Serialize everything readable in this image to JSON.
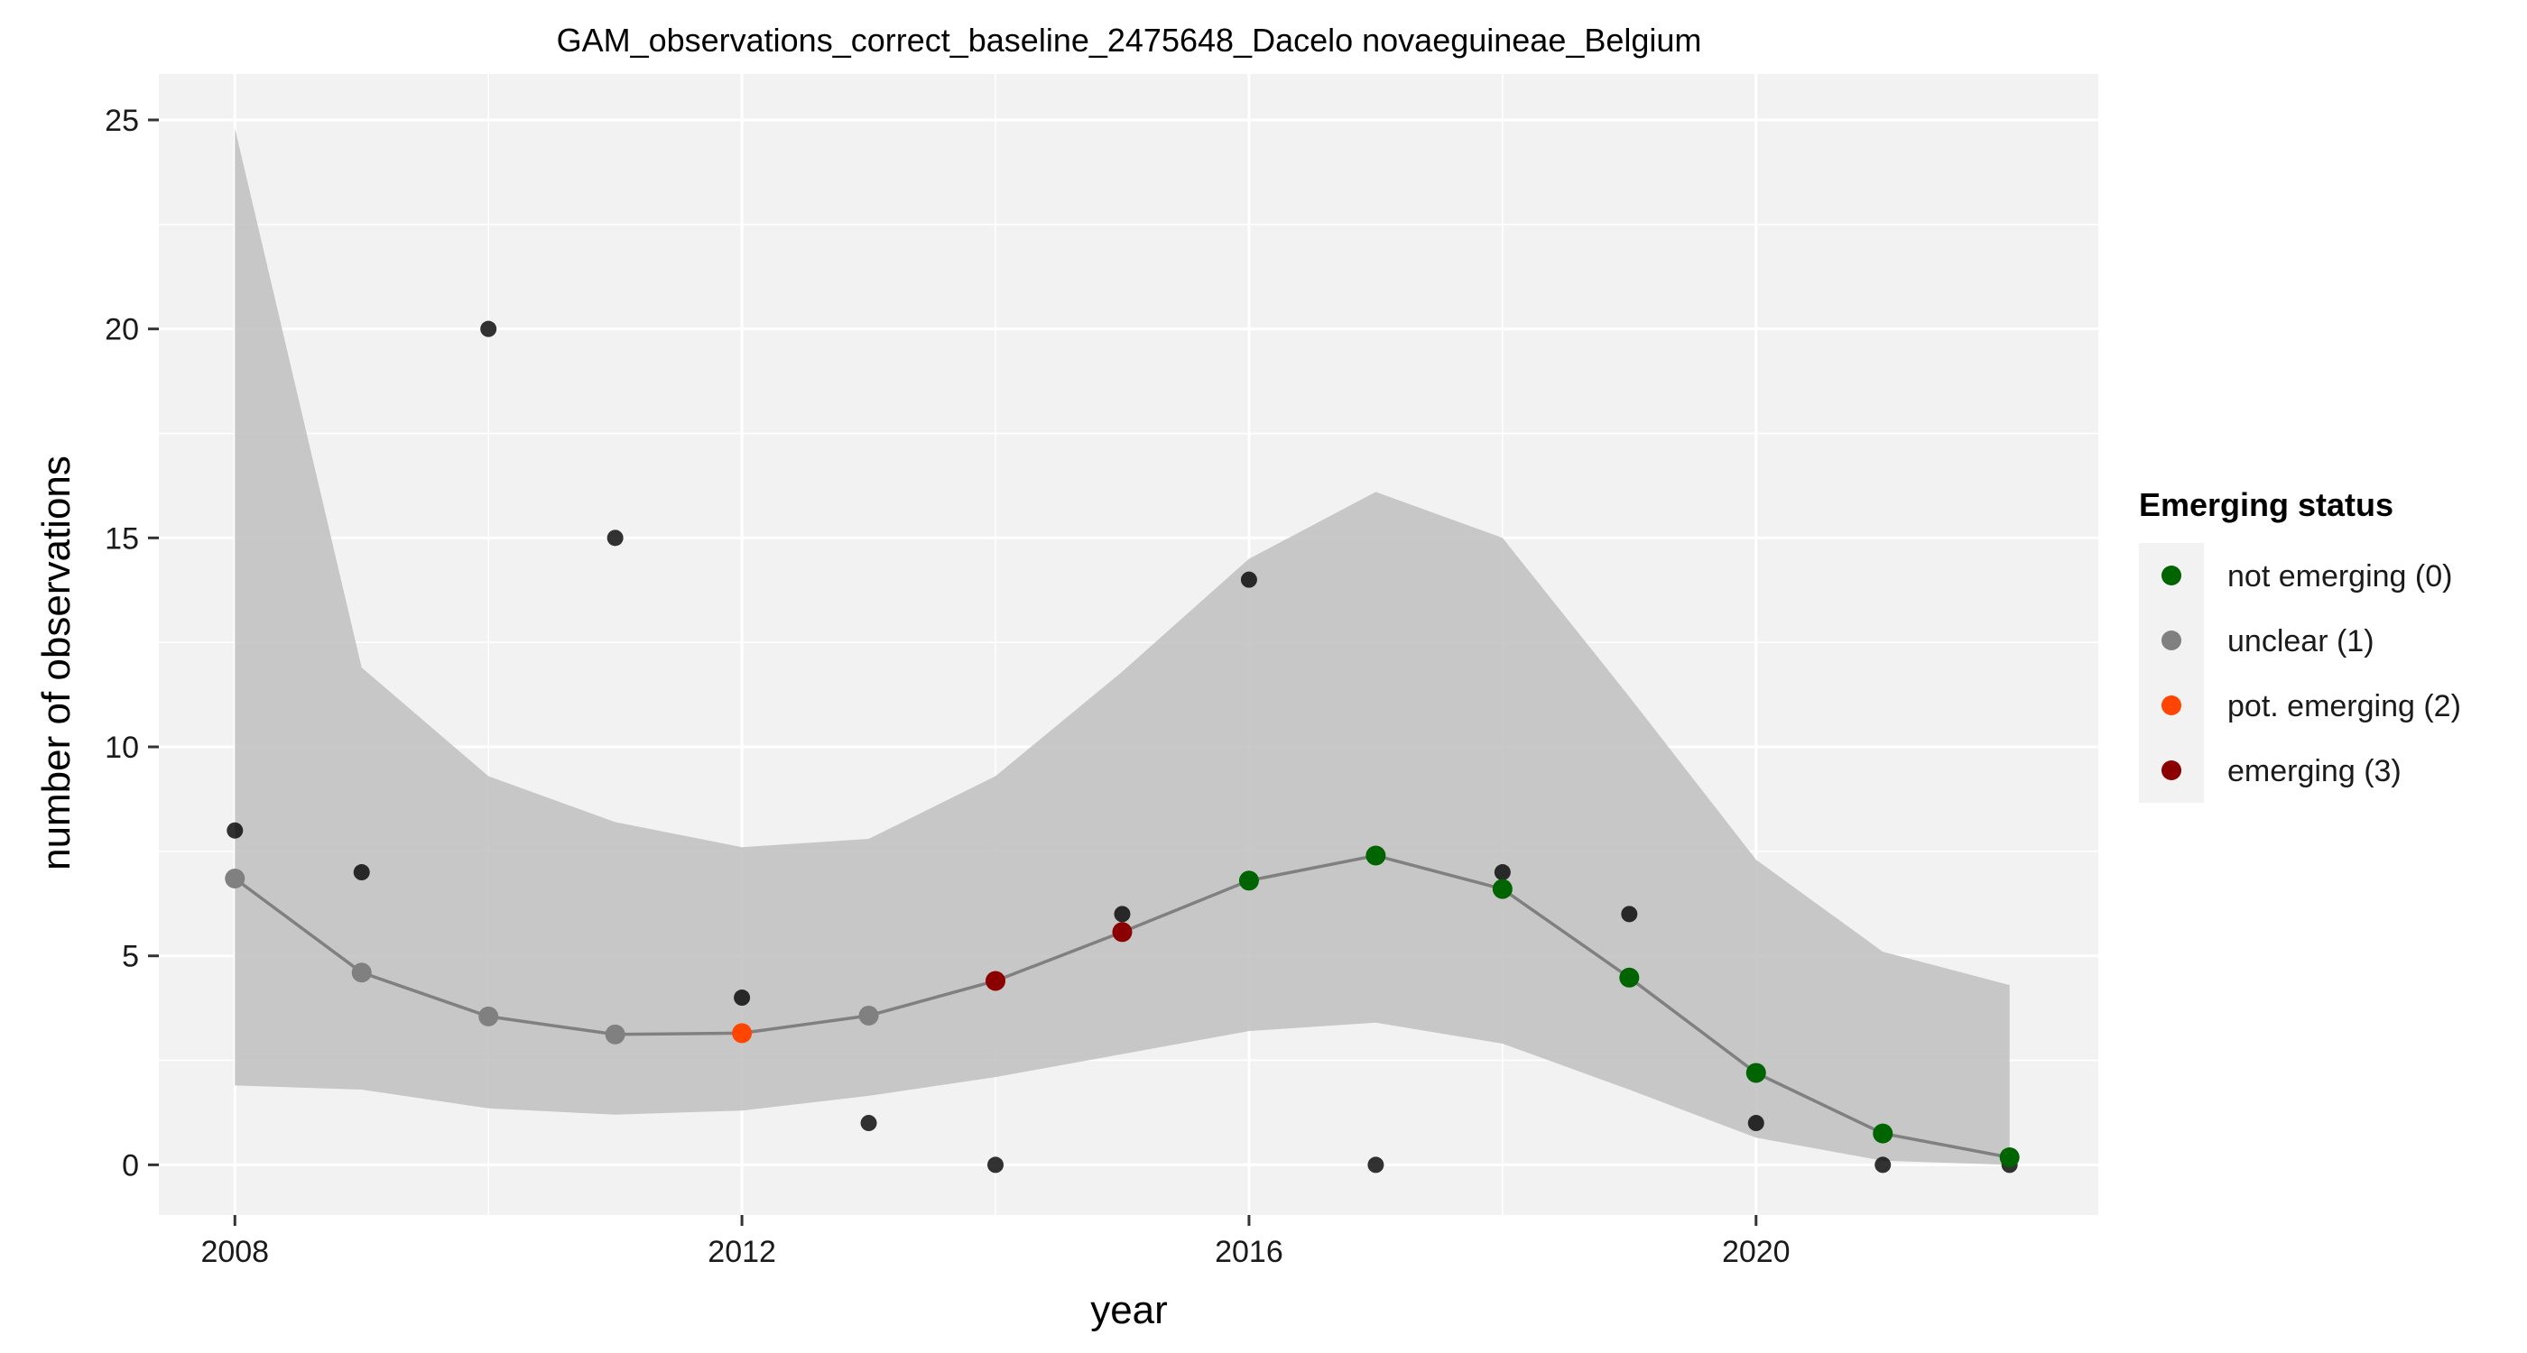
{
  "chart_data": {
    "type": "scatter",
    "title": "GAM_observations_correct_baseline_2475648_Dacelo novaeguineae_Belgium",
    "xlabel": "year",
    "ylabel": "number of observations",
    "xlim": [
      2007.4,
      2022.7
    ],
    "ylim": [
      -1.2,
      26.1
    ],
    "x_ticks": [
      "2008",
      "2012",
      "2016",
      "2020"
    ],
    "x_tick_values": [
      2008,
      2012,
      2016,
      2020
    ],
    "y_ticks": [
      "0",
      "5",
      "10",
      "15",
      "20",
      "25"
    ],
    "y_tick_values": [
      0,
      5,
      10,
      15,
      20,
      25
    ],
    "grid": true,
    "legend_position": "right",
    "colors": {
      "panel_background": "#f2f2f2",
      "grid": "#ffffff",
      "ribbon": "#bfbfbf",
      "fit_line": "#808080",
      "observed_point": "#000000"
    },
    "ribbon": {
      "x": [
        2008,
        2009,
        2010,
        2011,
        2012,
        2013,
        2014,
        2015,
        2016,
        2017,
        2018,
        2019,
        2020,
        2021,
        2022
      ],
      "lower": [
        1.9,
        1.8,
        1.35,
        1.2,
        1.3,
        1.65,
        2.1,
        2.65,
        3.2,
        3.4,
        2.9,
        1.8,
        0.65,
        0.1,
        0.0
      ],
      "upper": [
        24.8,
        11.9,
        9.3,
        8.2,
        7.6,
        7.8,
        9.3,
        11.8,
        14.5,
        16.1,
        15.0,
        11.2,
        7.3,
        5.1,
        4.3
      ]
    },
    "series": [
      {
        "name": "observed",
        "x": [
          2008,
          2009,
          2010,
          2011,
          2012,
          2013,
          2014,
          2015,
          2016,
          2017,
          2018,
          2019,
          2020,
          2021,
          2022
        ],
        "y": [
          8,
          7,
          20,
          15,
          4,
          1,
          0,
          6,
          14,
          0,
          7,
          6,
          1,
          0,
          0
        ]
      },
      {
        "name": "fitted",
        "x": [
          2008,
          2009,
          2010,
          2011,
          2012,
          2013,
          2014,
          2015,
          2016,
          2017,
          2018,
          2019,
          2020,
          2021,
          2022
        ],
        "y": [
          6.85,
          4.6,
          3.55,
          3.12,
          3.15,
          3.57,
          4.4,
          5.57,
          6.8,
          7.4,
          6.6,
          4.48,
          2.2,
          0.75,
          0.18
        ],
        "status": [
          1,
          1,
          1,
          1,
          2,
          1,
          3,
          3,
          0,
          0,
          0,
          0,
          0,
          0,
          0
        ]
      }
    ],
    "legend": {
      "title": "Emerging status",
      "entries": [
        {
          "label": "not emerging (0)",
          "color": "#006400"
        },
        {
          "label": "unclear (1)",
          "color": "#808080"
        },
        {
          "label": "pot. emerging (2)",
          "color": "#ff4500"
        },
        {
          "label": "emerging (3)",
          "color": "#8b0000"
        }
      ]
    }
  }
}
